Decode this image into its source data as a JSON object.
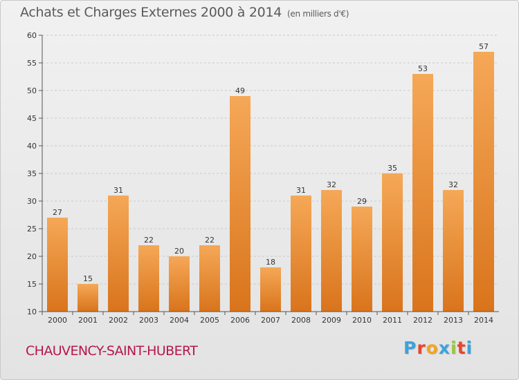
{
  "header": {
    "title": "Achats et Charges Externes 2000 à 2014",
    "unit": "(en milliers d'€)"
  },
  "footer": {
    "commune": "CHAUVENCY-SAINT-HUBERT",
    "logo_text": "Proxiti",
    "logo_colors": [
      "#3aa3dd",
      "#e8452c",
      "#f2a51f",
      "#3aa3dd",
      "#9bc63c",
      "#e8452c",
      "#3aa3dd"
    ]
  },
  "colors": {
    "bar_top": "#f5a857",
    "bar_bottom": "#d9741c",
    "grid": "#c9c9c9",
    "commune": "#b5174a"
  },
  "chart_data": {
    "type": "bar",
    "title": "Achats et Charges Externes 2000 à 2014",
    "subtitle": "(en milliers d'€)",
    "xlabel": "",
    "ylabel": "",
    "categories": [
      "2000",
      "2001",
      "2002",
      "2003",
      "2004",
      "2005",
      "2006",
      "2007",
      "2008",
      "2009",
      "2010",
      "2011",
      "2012",
      "2013",
      "2014"
    ],
    "values": [
      27,
      15,
      31,
      22,
      20,
      22,
      49,
      18,
      31,
      32,
      29,
      35,
      53,
      32,
      57
    ],
    "ylim": [
      10,
      60
    ],
    "yticks": [
      10,
      15,
      20,
      25,
      30,
      35,
      40,
      45,
      50,
      55,
      60
    ],
    "grid": true,
    "legend": "none"
  }
}
